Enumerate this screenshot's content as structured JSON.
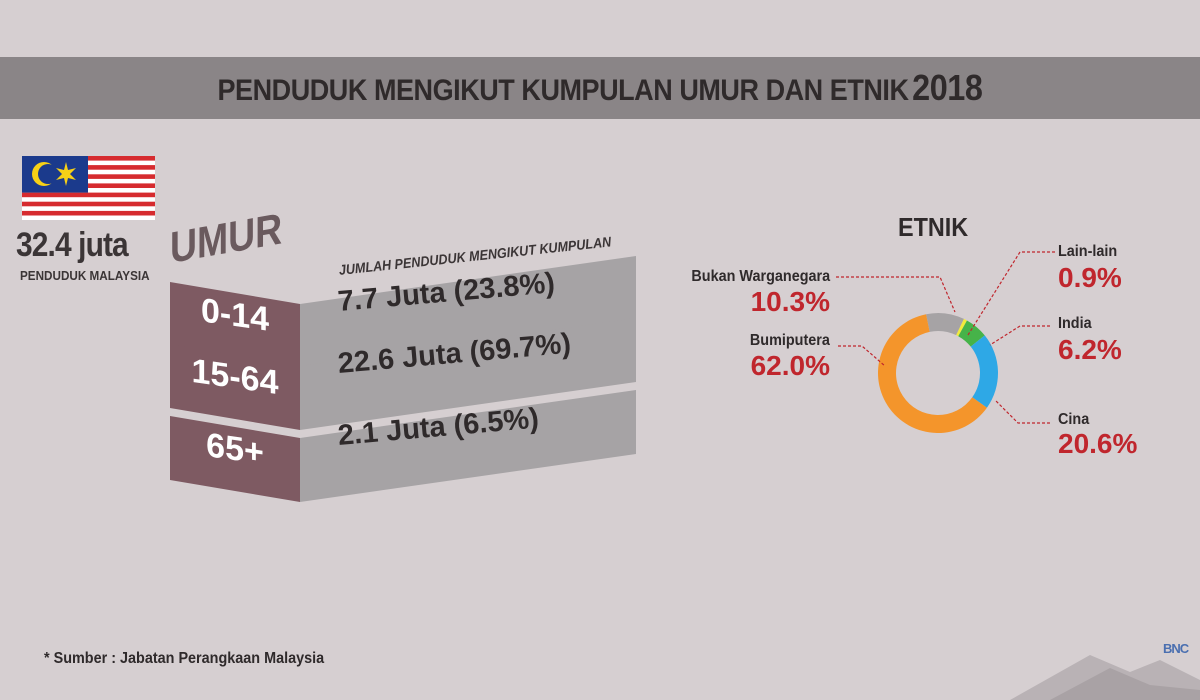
{
  "header": {
    "title": "PENDUDUK MENGIKUT KUMPULAN UMUR DAN ETNIK",
    "year": "2018"
  },
  "population": {
    "total": "32.4 juta",
    "label": "PENDUDUK MALAYSIA"
  },
  "age_section": {
    "title": "UMUR",
    "subtitle": "JUMLAH PENDUDUK MENGIKUT KUMPULAN"
  },
  "ethnic_section": {
    "title": "ETNIK"
  },
  "footer": {
    "source": "* Sumber : Jabatan Perangkaan Malaysia",
    "logo_text": "BNC"
  },
  "colors": {
    "background": "#d6cfd1",
    "title_band": "#8a8587",
    "age_box": "#7e5a62",
    "value_bar": "#a6a3a5",
    "accent_red": "#c0262d"
  },
  "chart_data": [
    {
      "type": "table",
      "title": "UMUR",
      "columns": [
        "UMUR",
        "JUMLAH PENDUDUK MENGIKUT KUMPULAN"
      ],
      "rows": [
        {
          "group": "0-14",
          "population_million": 7.7,
          "percent": 23.8,
          "display": "7.7 Juta (23.8%)"
        },
        {
          "group": "15-64",
          "population_million": 22.6,
          "percent": 69.7,
          "display": "22.6 Juta (69.7%)"
        },
        {
          "group": "65+",
          "population_million": 2.1,
          "percent": 6.5,
          "display": "2.1 Juta (6.5%)"
        }
      ]
    },
    {
      "type": "pie",
      "title": "ETNIK",
      "slices": [
        {
          "label": "Bumiputera",
          "value": 62.0,
          "display": "62.0%",
          "color": "#f4952b"
        },
        {
          "label": "Cina",
          "value": 20.6,
          "display": "20.6%",
          "color": "#2ea8e6"
        },
        {
          "label": "India",
          "value": 6.2,
          "display": "6.2%",
          "color": "#46b349"
        },
        {
          "label": "Lain-lain",
          "value": 0.9,
          "display": "0.9%",
          "color": "#f2ea3c"
        },
        {
          "label": "Bukan Warganegara",
          "value": 10.3,
          "display": "10.3%",
          "color": "#a6a3a5"
        }
      ]
    }
  ]
}
